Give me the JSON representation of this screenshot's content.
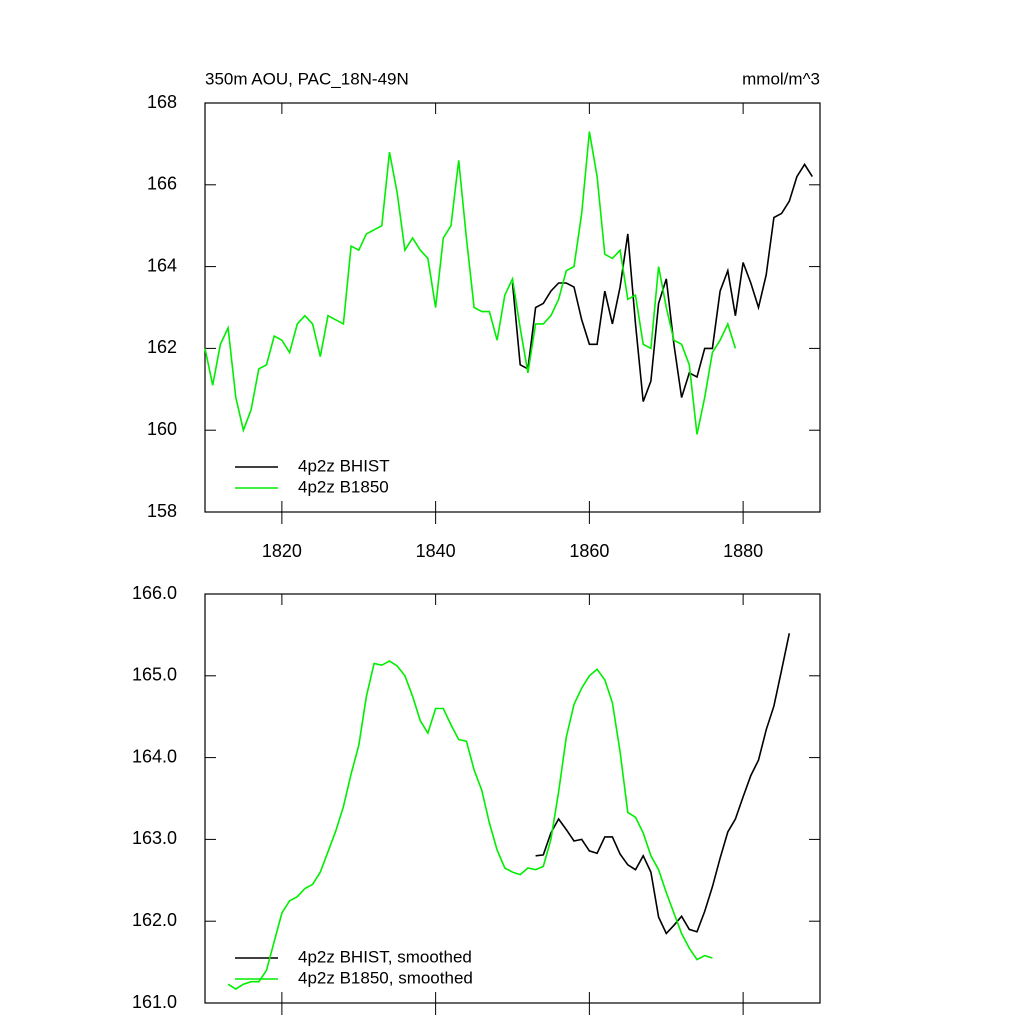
{
  "chart_data": [
    {
      "type": "line",
      "title": "350m AOU, PAC_18N-49N",
      "units": "mmol/m^3",
      "xlim": [
        1810,
        1890
      ],
      "xticks": [
        1820,
        1840,
        1860,
        1880
      ],
      "ylim": [
        158,
        168
      ],
      "yticks": [
        158,
        160,
        162,
        164,
        166,
        168
      ],
      "legend": "lower left",
      "series": [
        {
          "name": "4p2z BHIST",
          "color": "#000000",
          "x": [
            1850,
            1851,
            1852,
            1853,
            1854,
            1855,
            1856,
            1857,
            1858,
            1859,
            1860,
            1861,
            1862,
            1863,
            1864,
            1865,
            1866,
            1867,
            1868,
            1869,
            1870,
            1871,
            1872,
            1873,
            1874,
            1875,
            1876,
            1877,
            1878,
            1879,
            1880,
            1881,
            1882,
            1883,
            1884,
            1885,
            1886,
            1887,
            1888,
            1889
          ],
          "values": [
            163.6,
            161.6,
            161.5,
            163.0,
            163.1,
            163.4,
            163.6,
            163.6,
            163.5,
            162.7,
            162.1,
            162.1,
            163.4,
            162.6,
            163.5,
            164.8,
            162.6,
            160.7,
            161.2,
            163.1,
            163.7,
            162.1,
            160.8,
            161.4,
            161.3,
            162.0,
            162.0,
            163.4,
            163.9,
            162.8,
            164.1,
            163.6,
            163.0,
            163.8,
            165.2,
            165.3,
            165.6,
            166.2,
            166.5,
            166.2
          ]
        },
        {
          "name": "4p2z B1850",
          "color": "#00ee00",
          "x": [
            1810,
            1811,
            1812,
            1813,
            1814,
            1815,
            1816,
            1817,
            1818,
            1819,
            1820,
            1821,
            1822,
            1823,
            1824,
            1825,
            1826,
            1827,
            1828,
            1829,
            1830,
            1831,
            1832,
            1833,
            1834,
            1835,
            1836,
            1837,
            1838,
            1839,
            1840,
            1841,
            1842,
            1843,
            1844,
            1845,
            1846,
            1847,
            1848,
            1849,
            1850,
            1851,
            1852,
            1853,
            1854,
            1855,
            1856,
            1857,
            1858,
            1859,
            1860,
            1861,
            1862,
            1863,
            1864,
            1865,
            1866,
            1867,
            1868,
            1869,
            1870,
            1871,
            1872,
            1873,
            1874,
            1875,
            1876,
            1877,
            1878,
            1879
          ],
          "values": [
            162.0,
            161.1,
            162.1,
            162.5,
            160.8,
            160.0,
            160.5,
            161.5,
            161.6,
            162.3,
            162.2,
            161.9,
            162.6,
            162.8,
            162.6,
            161.8,
            162.8,
            162.7,
            162.6,
            164.5,
            164.4,
            164.8,
            164.9,
            165.0,
            166.8,
            165.8,
            164.4,
            164.7,
            164.4,
            164.2,
            163.0,
            164.7,
            165.0,
            166.6,
            164.7,
            163.0,
            162.9,
            162.9,
            162.2,
            163.3,
            163.7,
            162.5,
            161.4,
            162.6,
            162.6,
            162.8,
            163.2,
            163.9,
            164.0,
            165.3,
            167.3,
            166.2,
            164.3,
            164.2,
            164.4,
            163.2,
            163.3,
            162.1,
            162.0,
            164.0,
            163.0,
            162.2,
            162.1,
            161.6,
            159.9,
            160.8,
            161.9,
            162.2,
            162.6,
            162.0
          ]
        }
      ]
    },
    {
      "type": "line",
      "xlim": [
        1810,
        1890
      ],
      "xticks": [
        1820,
        1840,
        1860,
        1880
      ],
      "ylim": [
        161,
        166
      ],
      "yticks": [
        {
          "value": 161,
          "label": "161.0"
        },
        {
          "value": 162,
          "label": "162.0"
        },
        {
          "value": 163,
          "label": "163.0"
        },
        {
          "value": 164,
          "label": "164.0"
        },
        {
          "value": 165,
          "label": "165.0"
        },
        {
          "value": 166,
          "label": "166.0"
        }
      ],
      "legend": "lower left",
      "series": [
        {
          "name": "4p2z BHIST, smoothed",
          "color": "#000000",
          "x": [
            1853,
            1854,
            1855,
            1856,
            1857,
            1858,
            1859,
            1860,
            1861,
            1862,
            1863,
            1864,
            1865,
            1866,
            1867,
            1868,
            1869,
            1870,
            1871,
            1872,
            1873,
            1874,
            1875,
            1876,
            1877,
            1878,
            1879,
            1880,
            1881,
            1882,
            1883,
            1884,
            1885,
            1886
          ],
          "values": [
            162.8,
            162.81,
            163.08,
            163.25,
            163.12,
            162.98,
            163.0,
            162.86,
            162.83,
            163.03,
            163.03,
            162.82,
            162.69,
            162.63,
            162.8,
            162.6,
            162.05,
            161.85,
            161.95,
            162.06,
            161.9,
            161.87,
            162.12,
            162.42,
            162.77,
            163.09,
            163.25,
            163.52,
            163.78,
            163.97,
            164.34,
            164.63,
            165.07,
            165.52
          ]
        },
        {
          "name": "4p2z B1850, smoothed",
          "color": "#00ee00",
          "x": [
            1813,
            1814,
            1815,
            1816,
            1817,
            1818,
            1819,
            1820,
            1821,
            1822,
            1823,
            1824,
            1825,
            1826,
            1827,
            1828,
            1829,
            1830,
            1831,
            1832,
            1833,
            1834,
            1835,
            1836,
            1837,
            1838,
            1839,
            1840,
            1841,
            1842,
            1843,
            1844,
            1845,
            1846,
            1847,
            1848,
            1849,
            1850,
            1851,
            1852,
            1853,
            1854,
            1855,
            1856,
            1857,
            1858,
            1859,
            1860,
            1861,
            1862,
            1863,
            1864,
            1865,
            1866,
            1867,
            1868,
            1869,
            1870,
            1871,
            1872,
            1873,
            1874,
            1875,
            1876
          ],
          "values": [
            161.23,
            161.17,
            161.23,
            161.26,
            161.26,
            161.4,
            161.75,
            162.1,
            162.25,
            162.3,
            162.4,
            162.45,
            162.6,
            162.85,
            163.1,
            163.4,
            163.8,
            164.15,
            164.75,
            165.15,
            165.13,
            165.18,
            165.12,
            165.0,
            164.75,
            164.45,
            164.3,
            164.6,
            164.6,
            164.4,
            164.22,
            164.2,
            163.85,
            163.6,
            163.2,
            162.87,
            162.65,
            162.6,
            162.57,
            162.65,
            162.63,
            162.67,
            163.0,
            163.58,
            164.25,
            164.65,
            164.85,
            165.0,
            165.08,
            164.95,
            164.67,
            164.07,
            163.33,
            163.27,
            163.08,
            162.8,
            162.63,
            162.35,
            162.1,
            161.85,
            161.67,
            161.53,
            161.58,
            161.55
          ]
        }
      ]
    }
  ]
}
